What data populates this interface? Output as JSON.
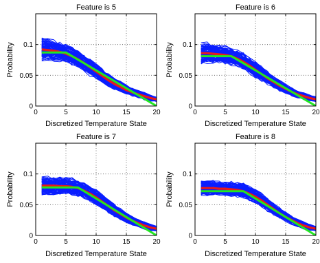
{
  "colors": {
    "samples": "#0a1eff",
    "mean": "#e81a1a",
    "fit": "#22e622",
    "axes": "#000000",
    "grid": "#555555",
    "background": "#ffffff"
  },
  "chart_data": [
    {
      "type": "line",
      "title": "Feature is 5",
      "xlabel": "Discretized Temperature State",
      "ylabel": "Probability",
      "xlim": [
        0,
        20
      ],
      "ylim": [
        0,
        0.15
      ],
      "xticks": [
        0,
        5,
        10,
        15,
        20
      ],
      "yticks": [
        0,
        0.05,
        0.1
      ],
      "xtick_labels": [
        "0",
        "5",
        "10",
        "15",
        "20"
      ],
      "ytick_labels": [
        "0",
        "0.05",
        "0.1"
      ],
      "grid": true,
      "series": [
        {
          "role": "samples",
          "x": [
            1,
            2,
            3,
            4,
            5,
            6,
            7,
            8,
            9,
            10,
            11,
            12,
            13,
            14,
            15,
            16,
            17,
            18,
            19,
            20
          ],
          "y_center": [
            0.092,
            0.091,
            0.09,
            0.088,
            0.085,
            0.081,
            0.076,
            0.07,
            0.063,
            0.056,
            0.049,
            0.042,
            0.036,
            0.031,
            0.026,
            0.022,
            0.019,
            0.016,
            0.013,
            0.011
          ],
          "spread": [
            0.018,
            0.018,
            0.017,
            0.016,
            0.015,
            0.015,
            0.014,
            0.014,
            0.014,
            0.013,
            0.012,
            0.011,
            0.01,
            0.009,
            0.008,
            0.007,
            0.006,
            0.006,
            0.005,
            0.004
          ]
        },
        {
          "role": "mean",
          "x": [
            1,
            2,
            3,
            4,
            5,
            6,
            7,
            8,
            9,
            10,
            11,
            12,
            13,
            14,
            15,
            16,
            17,
            18,
            19,
            20
          ],
          "y": [
            0.092,
            0.091,
            0.09,
            0.088,
            0.085,
            0.081,
            0.076,
            0.07,
            0.063,
            0.056,
            0.049,
            0.042,
            0.036,
            0.031,
            0.026,
            0.022,
            0.019,
            0.016,
            0.013,
            0.011
          ]
        },
        {
          "role": "fit",
          "x": [
            1,
            5,
            20
          ],
          "y": [
            0.087,
            0.087,
            0.0
          ]
        }
      ]
    },
    {
      "type": "line",
      "title": "Feature is 6",
      "xlabel": "Discretized Temperature State",
      "ylabel": "Probability",
      "xlim": [
        0,
        20
      ],
      "ylim": [
        0,
        0.15
      ],
      "xticks": [
        0,
        5,
        10,
        15,
        20
      ],
      "yticks": [
        0,
        0.05,
        0.1
      ],
      "xtick_labels": [
        "0",
        "5",
        "10",
        "15",
        "20"
      ],
      "ytick_labels": [
        "0",
        "0.05",
        "0.1"
      ],
      "grid": true,
      "series": [
        {
          "role": "samples",
          "x": [
            1,
            2,
            3,
            4,
            5,
            6,
            7,
            8,
            9,
            10,
            11,
            12,
            13,
            14,
            15,
            16,
            17,
            18,
            19,
            20
          ],
          "y_center": [
            0.086,
            0.086,
            0.085,
            0.084,
            0.083,
            0.081,
            0.077,
            0.072,
            0.066,
            0.059,
            0.052,
            0.045,
            0.039,
            0.033,
            0.028,
            0.023,
            0.019,
            0.016,
            0.013,
            0.011
          ],
          "spread": [
            0.017,
            0.017,
            0.016,
            0.016,
            0.015,
            0.015,
            0.014,
            0.014,
            0.013,
            0.013,
            0.012,
            0.011,
            0.01,
            0.009,
            0.008,
            0.007,
            0.006,
            0.006,
            0.005,
            0.004
          ]
        },
        {
          "role": "mean",
          "x": [
            1,
            2,
            3,
            4,
            5,
            6,
            7,
            8,
            9,
            10,
            11,
            12,
            13,
            14,
            15,
            16,
            17,
            18,
            19,
            20
          ],
          "y": [
            0.086,
            0.086,
            0.085,
            0.084,
            0.083,
            0.081,
            0.077,
            0.072,
            0.066,
            0.059,
            0.052,
            0.045,
            0.039,
            0.033,
            0.028,
            0.023,
            0.019,
            0.016,
            0.013,
            0.011
          ]
        },
        {
          "role": "fit",
          "x": [
            1,
            6,
            20
          ],
          "y": [
            0.081,
            0.081,
            0.0
          ]
        }
      ]
    },
    {
      "type": "line",
      "title": "Feature is 7",
      "xlabel": "Discretized Temperature State",
      "ylabel": "Probability",
      "xlim": [
        0,
        20
      ],
      "ylim": [
        0,
        0.15
      ],
      "xticks": [
        0,
        5,
        10,
        15,
        20
      ],
      "yticks": [
        0,
        0.05,
        0.1
      ],
      "xtick_labels": [
        "0",
        "5",
        "10",
        "15",
        "20"
      ],
      "ytick_labels": [
        "0",
        "0.05",
        "0.1"
      ],
      "grid": true,
      "series": [
        {
          "role": "samples",
          "x": [
            1,
            2,
            3,
            4,
            5,
            6,
            7,
            8,
            9,
            10,
            11,
            12,
            13,
            14,
            15,
            16,
            17,
            18,
            19,
            20
          ],
          "y_center": [
            0.081,
            0.081,
            0.081,
            0.08,
            0.08,
            0.079,
            0.077,
            0.073,
            0.068,
            0.062,
            0.055,
            0.048,
            0.041,
            0.035,
            0.029,
            0.024,
            0.02,
            0.016,
            0.013,
            0.011
          ],
          "spread": [
            0.015,
            0.015,
            0.015,
            0.014,
            0.014,
            0.014,
            0.013,
            0.013,
            0.012,
            0.012,
            0.011,
            0.011,
            0.01,
            0.009,
            0.008,
            0.007,
            0.006,
            0.006,
            0.005,
            0.004
          ]
        },
        {
          "role": "mean",
          "x": [
            1,
            2,
            3,
            4,
            5,
            6,
            7,
            8,
            9,
            10,
            11,
            12,
            13,
            14,
            15,
            16,
            17,
            18,
            19,
            20
          ],
          "y": [
            0.081,
            0.081,
            0.081,
            0.08,
            0.08,
            0.079,
            0.077,
            0.073,
            0.068,
            0.062,
            0.055,
            0.048,
            0.041,
            0.035,
            0.029,
            0.024,
            0.02,
            0.016,
            0.013,
            0.011
          ]
        },
        {
          "role": "fit",
          "x": [
            1,
            7,
            20
          ],
          "y": [
            0.078,
            0.078,
            0.0
          ]
        }
      ]
    },
    {
      "type": "line",
      "title": "Feature is 8",
      "xlabel": "Discretized Temperature State",
      "ylabel": "Probability",
      "xlim": [
        0,
        20
      ],
      "ylim": [
        0,
        0.15
      ],
      "xticks": [
        0,
        5,
        10,
        15,
        20
      ],
      "yticks": [
        0,
        0.05,
        0.1
      ],
      "xtick_labels": [
        "0",
        "5",
        "10",
        "15",
        "20"
      ],
      "ytick_labels": [
        "0",
        "0.05",
        "0.1"
      ],
      "grid": true,
      "series": [
        {
          "role": "samples",
          "x": [
            1,
            2,
            3,
            4,
            5,
            6,
            7,
            8,
            9,
            10,
            11,
            12,
            13,
            14,
            15,
            16,
            17,
            18,
            19,
            20
          ],
          "y_center": [
            0.077,
            0.077,
            0.077,
            0.076,
            0.076,
            0.075,
            0.074,
            0.072,
            0.068,
            0.063,
            0.057,
            0.05,
            0.043,
            0.036,
            0.03,
            0.025,
            0.02,
            0.016,
            0.013,
            0.011
          ],
          "spread": [
            0.013,
            0.013,
            0.013,
            0.012,
            0.012,
            0.012,
            0.012,
            0.012,
            0.012,
            0.011,
            0.011,
            0.011,
            0.01,
            0.009,
            0.008,
            0.007,
            0.006,
            0.006,
            0.005,
            0.004
          ]
        },
        {
          "role": "mean",
          "x": [
            1,
            2,
            3,
            4,
            5,
            6,
            7,
            8,
            9,
            10,
            11,
            12,
            13,
            14,
            15,
            16,
            17,
            18,
            19,
            20
          ],
          "y": [
            0.077,
            0.077,
            0.077,
            0.076,
            0.076,
            0.075,
            0.074,
            0.072,
            0.068,
            0.063,
            0.057,
            0.05,
            0.043,
            0.036,
            0.03,
            0.025,
            0.02,
            0.016,
            0.013,
            0.011
          ]
        },
        {
          "role": "fit",
          "x": [
            1,
            8,
            20
          ],
          "y": [
            0.072,
            0.072,
            0.0
          ]
        }
      ]
    }
  ]
}
